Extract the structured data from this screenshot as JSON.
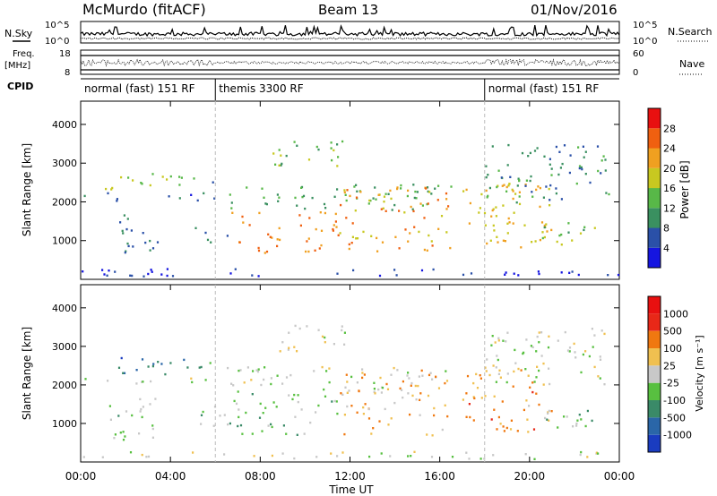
{
  "header": {
    "station": "McMurdo (fitACF)",
    "beam": "Beam 13",
    "date": "01/Nov/2016"
  },
  "top_panels": {
    "nsky_label": "N.Sky",
    "nsearch_label": "N.Search",
    "noise_ticks_left": [
      "10^5",
      "10^0"
    ],
    "noise_ticks_right": [
      "10^5",
      "10^0"
    ],
    "freq_label": "Freq.",
    "freq_unit": "[MHz]",
    "freq_ticks": [
      "18",
      "8"
    ],
    "nave_label": "Nave",
    "nave_ticks": [
      "60",
      "0"
    ],
    "cpid_label": "CPID"
  },
  "cpid_segments": [
    {
      "label": "normal (fast) 151 RF",
      "start": 0,
      "end": 6
    },
    {
      "label": "themis 3300 RF",
      "start": 6,
      "end": 18
    },
    {
      "label": "normal (fast) 151 RF",
      "start": 18,
      "end": 24
    }
  ],
  "x_axis": {
    "label": "Time UT",
    "ticks": [
      "00:00",
      "04:00",
      "08:00",
      "12:00",
      "16:00",
      "20:00",
      "00:00"
    ]
  },
  "power_panel": {
    "ylabel": "Slant Range [km]",
    "yticks": [
      "1000",
      "2000",
      "3000",
      "4000"
    ],
    "colorbar_label": "Power [dB]",
    "colorbar_ticks": [
      "4",
      "8",
      "12",
      "16",
      "20",
      "24",
      "28"
    ],
    "colors": [
      "#1515e0",
      "#2a50a8",
      "#3a9060",
      "#58b848",
      "#c8c820",
      "#f0a020",
      "#f06010",
      "#e81010"
    ]
  },
  "velocity_panel": {
    "ylabel": "Slant Range [km]",
    "yticks": [
      "1000",
      "2000",
      "3000",
      "4000"
    ],
    "colorbar_label": "Velocity [m s⁻¹]",
    "colorbar_ticks": [
      "1000",
      "500",
      "100",
      "25",
      "-25",
      "-100",
      "-500",
      "-1000"
    ],
    "colors": [
      "#1a3cc0",
      "#2a66a8",
      "#3a8a68",
      "#58c040",
      "#c8c8c8",
      "#f0c050",
      "#f07810",
      "#e82818",
      "#e81010"
    ]
  },
  "chart_data": {
    "type": "heatmap",
    "title": "McMurdo (fitACF) Beam 13 01/Nov/2016",
    "xlabel": "Time UT",
    "ylabel": "Slant Range [km]",
    "xlim": [
      0,
      24
    ],
    "ylim": [
      0,
      4600
    ],
    "power_clim": [
      0,
      32
    ],
    "velocity_clim": [
      -1200,
      1200
    ],
    "scatter_regions": [
      {
        "t": [
          1.0,
          5.5
        ],
        "r": [
          2300,
          2750
        ],
        "power": 16,
        "velocity": 700
      },
      {
        "t": [
          0.0,
          6.0
        ],
        "r": [
          2050,
          2250
        ],
        "power": 6,
        "velocity": 25
      },
      {
        "t": [
          5.5,
          6.0
        ],
        "r": [
          2450,
          2600
        ],
        "power": 5,
        "velocity": 200
      },
      {
        "t": [
          1.2,
          3.5
        ],
        "r": [
          600,
          1700
        ],
        "power": 8,
        "velocity": 150
      },
      {
        "t": [
          5.0,
          7.0
        ],
        "r": [
          900,
          1500
        ],
        "power": 8,
        "velocity": 150
      },
      {
        "t": [
          6.5,
          11.5
        ],
        "r": [
          700,
          1800
        ],
        "power": 24,
        "velocity": 200
      },
      {
        "t": [
          6.5,
          16.5
        ],
        "r": [
          1800,
          2500
        ],
        "power": 12,
        "velocity": 25
      },
      {
        "t": [
          8.5,
          12.0
        ],
        "r": [
          2900,
          3500
        ],
        "power": 14,
        "velocity": -50
      },
      {
        "t": [
          11.5,
          16.5
        ],
        "r": [
          700,
          2400
        ],
        "power": 22,
        "velocity": -300
      },
      {
        "t": [
          9.0,
          12.0
        ],
        "r": [
          3400,
          3600
        ],
        "power": 12,
        "velocity": -100
      },
      {
        "t": [
          17.0,
          21.0
        ],
        "r": [
          800,
          2500
        ],
        "power": 20,
        "velocity": -400
      },
      {
        "t": [
          20.5,
          23.0
        ],
        "r": [
          900,
          1600
        ],
        "power": 14,
        "velocity": 150
      },
      {
        "t": [
          18.0,
          23.5
        ],
        "r": [
          2000,
          3500
        ],
        "power": 10,
        "velocity": 30
      },
      {
        "t": [
          0.0,
          24.0
        ],
        "r": [
          100,
          300
        ],
        "power": 4,
        "velocity": 0
      }
    ]
  }
}
